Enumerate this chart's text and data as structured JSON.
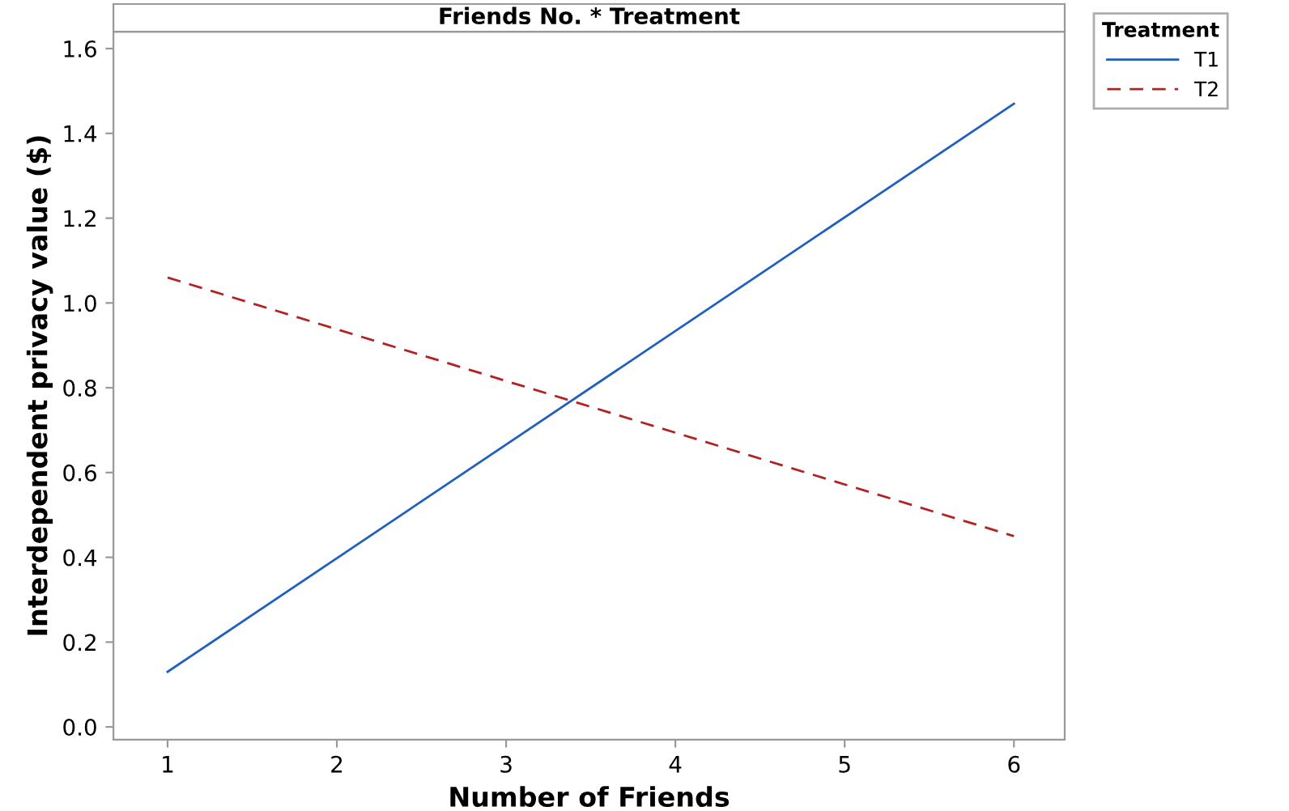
{
  "chart_data": {
    "type": "line",
    "title": "Friends No. * Treatment",
    "xlabel": "Number of Friends",
    "ylabel": "Interdependent privacy value ($)",
    "legend_title": "Treatment",
    "x": [
      1,
      6
    ],
    "series": [
      {
        "name": "T1",
        "color": "#1f5fbf",
        "values": [
          0.13,
          1.47
        ],
        "line_style": "solid"
      },
      {
        "name": "T2",
        "color": "#b22222",
        "values": [
          1.06,
          0.45
        ],
        "line_style": "dashed"
      }
    ],
    "xlim": [
      0.68,
      6.3
    ],
    "xticks": [
      1,
      2,
      3,
      4,
      5,
      6
    ],
    "ylim": [
      -0.03,
      1.64
    ],
    "yticks": [
      {
        "value": 0,
        "label": "0.0"
      },
      0.2,
      0.4,
      0.6,
      0.8,
      {
        "value": 1,
        "label": "1.0"
      },
      1.2,
      1.4,
      1.6
    ],
    "grid": false,
    "legend": "top right",
    "marker": "none"
  }
}
